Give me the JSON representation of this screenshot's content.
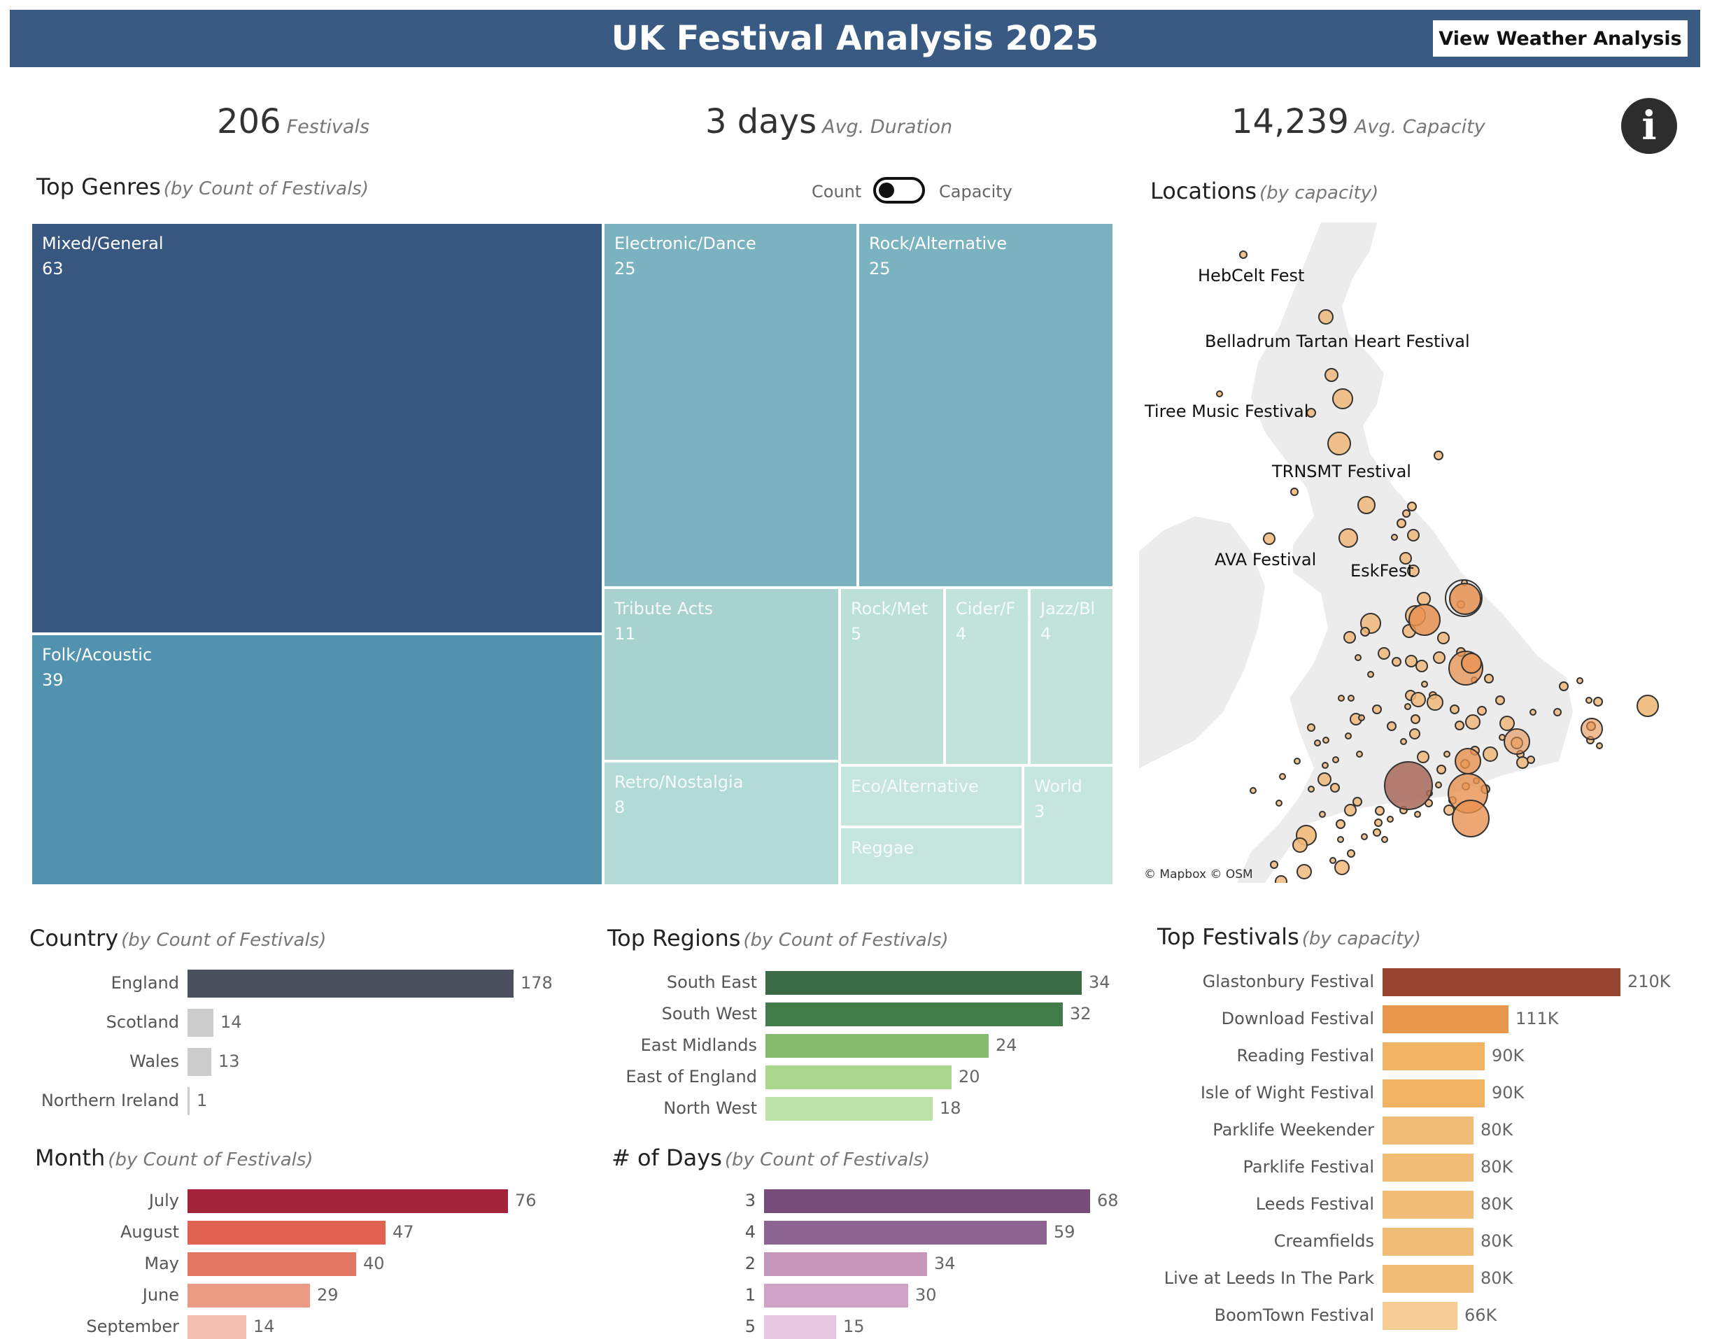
{
  "header": {
    "title": "UK Festival Analysis 2025",
    "weather_button": "View Weather Analysis",
    "bg_color": "#385a83"
  },
  "kpis": [
    {
      "value": "206",
      "label": "Festivals"
    },
    {
      "value": "3 days",
      "label": "Avg. Duration"
    },
    {
      "value": "14,239",
      "label": "Avg. Capacity"
    }
  ],
  "info_icon": {
    "glyph": "i",
    "icon": "info-icon"
  },
  "genres": {
    "title": "Top Genres",
    "subtitle": "(by Count of Festivals)",
    "toggle": {
      "left_label": "Count",
      "right_label": "Capacity",
      "selected": "Count"
    },
    "chart_data": {
      "type": "treemap",
      "items": [
        {
          "name": "Mixed/General",
          "value": 63,
          "color": "#375781"
        },
        {
          "name": "Folk/Acoustic",
          "value": 39,
          "color": "#5192af"
        },
        {
          "name": "Electronic/Dance",
          "value": 25,
          "color": "#7ab2c0"
        },
        {
          "name": "Rock/Alternative",
          "value": 25,
          "color": "#7ab2c0"
        },
        {
          "name": "Tribute Acts",
          "value": 11,
          "color": "#a8d2d0"
        },
        {
          "name": "Retro/Nostalgia",
          "value": 8,
          "color": "#b2dbd8"
        },
        {
          "name": "Rock/Met",
          "value": 5,
          "color": "#bcdfd6"
        },
        {
          "name": "Cider/F",
          "value": 4,
          "color": "#c1e3d9"
        },
        {
          "name": "Jazz/Bl",
          "value": 4,
          "color": "#c1e3d9"
        },
        {
          "name": "World",
          "value": 3,
          "color": "#c6e5dc"
        },
        {
          "name": "Eco/Alternative",
          "value": null,
          "color": "#c6e5dc"
        },
        {
          "name": "Reggae",
          "value": null,
          "color": "#c6e5dc"
        }
      ]
    }
  },
  "locations": {
    "title": "Locations",
    "subtitle": "(by capacity)",
    "credit": "© Mapbox  © OSM",
    "labels": [
      "HebCelt Fest",
      "Belladrum Tartan Heart Festival",
      "Tiree Music Festival",
      "TRNSMT Festival",
      "AVA Festival",
      "EskFest"
    ]
  },
  "country": {
    "title": "Country",
    "subtitle": "(by Count of Festivals)",
    "chart_data": {
      "type": "bar",
      "categories": [
        "England",
        "Scotland",
        "Wales",
        "Northern Ireland"
      ],
      "values": [
        178,
        14,
        13,
        1
      ],
      "colors": [
        "#4a505d",
        "#cccccc",
        "#cccccc",
        "#cccccc"
      ]
    }
  },
  "regions": {
    "title": "Top Regions",
    "subtitle": "(by Count of Festivals)",
    "chart_data": {
      "type": "bar",
      "categories": [
        "South East",
        "South West",
        "East Midlands",
        "East of England",
        "North West"
      ],
      "values": [
        34,
        32,
        24,
        20,
        18
      ],
      "colors": [
        "#3b6b45",
        "#437c4b",
        "#86ba6c",
        "#a8d68c",
        "#bde2a8"
      ]
    }
  },
  "top_festivals": {
    "title": "Top Festivals",
    "subtitle": "(by capacity)",
    "chart_data": {
      "type": "bar",
      "categories": [
        "Glastonbury Festival",
        "Download Festival",
        "Reading Festival",
        "Isle of Wight Festival",
        "Parklife Weekender",
        "Parklife Festival",
        "Leeds Festival",
        "Creamfields",
        "Live at Leeds In The Park",
        "BoomTown Festival"
      ],
      "values": [
        210000,
        111000,
        90000,
        90000,
        80000,
        80000,
        80000,
        80000,
        80000,
        66000
      ],
      "labels": [
        "210K",
        "111K",
        "90K",
        "90K",
        "80K",
        "80K",
        "80K",
        "80K",
        "80K",
        "66K"
      ],
      "colors": [
        "#95432e",
        "#e8984c",
        "#efb363",
        "#efb363",
        "#f1bc76",
        "#f1bc76",
        "#f1bc76",
        "#f1bc76",
        "#f1bc76",
        "#f5cc94"
      ]
    }
  },
  "month": {
    "title": "Month",
    "subtitle": "(by Count of Festivals)",
    "chart_data": {
      "type": "bar",
      "categories": [
        "July",
        "August",
        "May",
        "June",
        "September"
      ],
      "values": [
        76,
        47,
        40,
        29,
        14
      ],
      "colors": [
        "#a2233a",
        "#e06351",
        "#e27864",
        "#eb9a84",
        "#f2bfb2"
      ]
    }
  },
  "days": {
    "title": "# of Days",
    "subtitle": "(by Count of Festivals)",
    "chart_data": {
      "type": "bar",
      "categories": [
        "3",
        "4",
        "2",
        "1",
        "5"
      ],
      "values": [
        68,
        59,
        34,
        30,
        15
      ],
      "colors": [
        "#754d78",
        "#8b6490",
        "#c697b9",
        "#cfa3c6",
        "#e6c8e1"
      ]
    }
  }
}
